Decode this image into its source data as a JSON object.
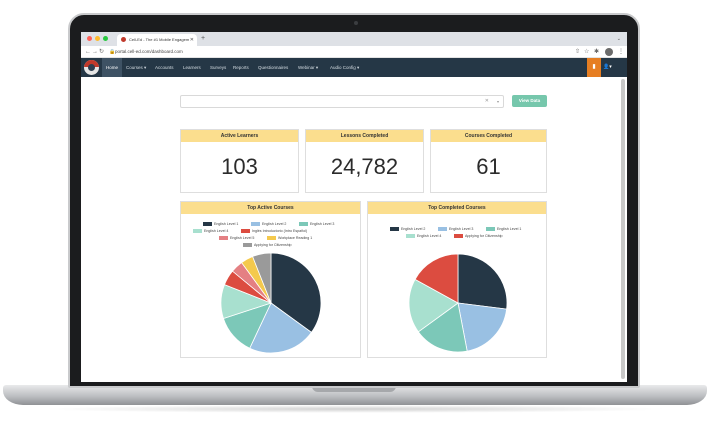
{
  "browser": {
    "tab_title": "Cell-Ed - The #1 Mobile Engagem",
    "url": "portal.cell-ed.com/dashboard.com"
  },
  "nav": {
    "items": [
      "Home",
      "Courses ▾",
      "Accounts",
      "Learners",
      "Surveys",
      "Reports",
      "Questionnaires",
      "Webinar ▾",
      "Audio Config ▾"
    ]
  },
  "filter": {
    "button_label": "View Data"
  },
  "stats": [
    {
      "label": "Active Learners",
      "value": "103"
    },
    {
      "label": "Lessons Completed",
      "value": "24,782"
    },
    {
      "label": "Courses Completed",
      "value": "61"
    }
  ],
  "chart_data": [
    {
      "type": "pie",
      "title": "Top Active Courses",
      "labels": [
        "English Level 1",
        "English Level 2",
        "English Level 3",
        "English Level 4",
        "Inglés Introductorio (Intro Español)",
        "English Level 5",
        "Workplace Reading 1",
        "Applying for Citizenship"
      ],
      "values": [
        35,
        22,
        13,
        11,
        5,
        4,
        4,
        6
      ],
      "colors": [
        "#253746",
        "#99c0e3",
        "#7cc8b8",
        "#a8e0cf",
        "#dc4c40",
        "#e48083",
        "#f4c94d",
        "#9a9a9a"
      ]
    },
    {
      "type": "pie",
      "title": "Top Completed Courses",
      "labels": [
        "English Level 2",
        "English Level 3",
        "English Level 1",
        "English Level 4",
        "Applying for Citizenship"
      ],
      "values": [
        27,
        20,
        18,
        18,
        17
      ],
      "colors": [
        "#253746",
        "#99c0e3",
        "#7cc8b8",
        "#a8e0cf",
        "#dc4c40"
      ]
    }
  ]
}
